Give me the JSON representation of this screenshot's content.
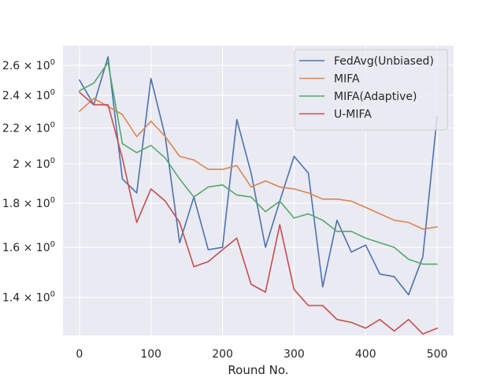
{
  "chart_data": {
    "type": "line",
    "title": "",
    "xlabel": "Round No.",
    "ylabel": "",
    "yscale": "log",
    "xlim": [
      -23,
      523
    ],
    "ylim": [
      1.265,
      2.74
    ],
    "grid": true,
    "legend_position": "top-right",
    "x_ticks": [
      0,
      100,
      200,
      300,
      400,
      500
    ],
    "x_tick_labels": [
      "0",
      "100",
      "200",
      "300",
      "400",
      "500"
    ],
    "y_ticks": [
      1.4,
      1.6,
      1.8,
      2.0,
      2.2,
      2.4,
      2.6
    ],
    "y_tick_labels": [
      {
        "mantissa": "1.4",
        "exp": "0"
      },
      {
        "mantissa": "1.6",
        "exp": "0"
      },
      {
        "mantissa": "1.8",
        "exp": "0"
      },
      {
        "mantissa": "2",
        "exp": "0"
      },
      {
        "mantissa": "2.2",
        "exp": "0"
      },
      {
        "mantissa": "2.4",
        "exp": "0"
      },
      {
        "mantissa": "2.6",
        "exp": "0"
      }
    ],
    "x": [
      0,
      20,
      40,
      60,
      80,
      100,
      120,
      140,
      160,
      180,
      200,
      220,
      240,
      260,
      280,
      300,
      320,
      340,
      360,
      380,
      400,
      420,
      440,
      460,
      480,
      500
    ],
    "series": [
      {
        "name": "FedAvg(Unbiased)",
        "color": "#4c72b0",
        "values": [
          2.5,
          2.34,
          2.66,
          1.92,
          1.85,
          2.51,
          2.15,
          1.62,
          1.83,
          1.59,
          1.6,
          2.25,
          1.95,
          1.6,
          1.81,
          2.04,
          1.95,
          1.44,
          1.72,
          1.58,
          1.61,
          1.49,
          1.48,
          1.41,
          1.56,
          2.27
        ]
      },
      {
        "name": "MIFA",
        "color": "#dd8452",
        "values": [
          2.3,
          2.38,
          2.33,
          2.28,
          2.15,
          2.24,
          2.15,
          2.04,
          2.02,
          1.97,
          1.97,
          1.99,
          1.88,
          1.91,
          1.88,
          1.87,
          1.85,
          1.82,
          1.82,
          1.81,
          1.78,
          1.75,
          1.72,
          1.71,
          1.68,
          1.69
        ]
      },
      {
        "name": "MIFA(Adaptive)",
        "color": "#55a868",
        "values": [
          2.43,
          2.48,
          2.62,
          2.11,
          2.06,
          2.1,
          2.03,
          1.92,
          1.83,
          1.88,
          1.89,
          1.84,
          1.83,
          1.76,
          1.81,
          1.73,
          1.75,
          1.72,
          1.67,
          1.67,
          1.64,
          1.62,
          1.6,
          1.55,
          1.53,
          1.53
        ]
      },
      {
        "name": "U-MIFA",
        "color": "#c44e52",
        "values": [
          2.42,
          2.34,
          2.34,
          2.03,
          1.71,
          1.87,
          1.81,
          1.71,
          1.52,
          1.54,
          1.59,
          1.64,
          1.45,
          1.42,
          1.7,
          1.43,
          1.37,
          1.37,
          1.32,
          1.31,
          1.29,
          1.32,
          1.28,
          1.32,
          1.27,
          1.29
        ]
      }
    ]
  }
}
